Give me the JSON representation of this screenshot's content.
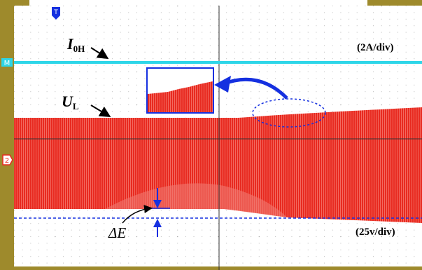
{
  "labels": {
    "current": {
      "main": "I",
      "sub": "0H"
    },
    "voltage": {
      "main": "U",
      "sub": "L"
    },
    "current_scale": "(2A/div)",
    "voltage_scale": "(25v/div)",
    "delta": "ΔE"
  },
  "markers": {
    "channel_m": "M",
    "channel_2": "2",
    "trigger": "T"
  }
}
